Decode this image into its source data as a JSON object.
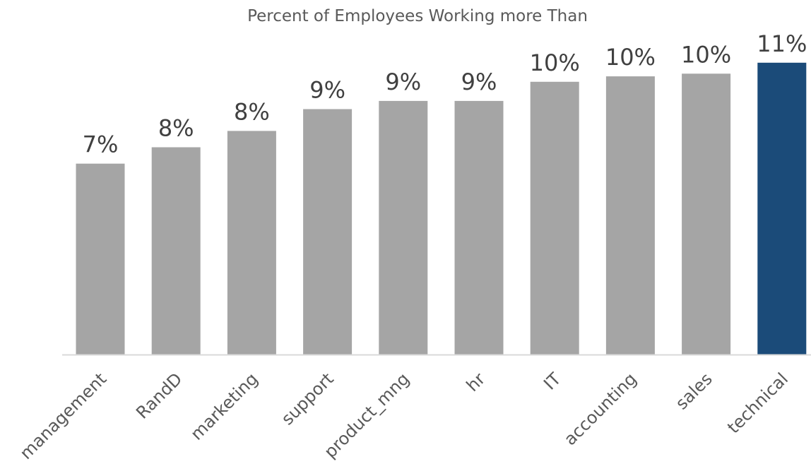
{
  "chart_data": {
    "type": "bar",
    "title": "Percent of Employees Working more Than",
    "xlabel": "",
    "ylabel": "",
    "categories": [
      "management",
      "RandD",
      "marketing",
      "support",
      "product_mng",
      "hr",
      "IT",
      "accounting",
      "sales",
      "technical"
    ],
    "values": [
      7.0,
      7.6,
      8.2,
      9.0,
      9.3,
      9.3,
      10.0,
      10.2,
      10.3,
      10.7
    ],
    "data_labels": [
      "7%",
      "8%",
      "8%",
      "9%",
      "9%",
      "9%",
      "10%",
      "10%",
      "10%",
      "11%"
    ],
    "ylim": [
      0,
      13
    ],
    "grid": false,
    "legend": "none",
    "colors": {
      "default_bar": "#a5a5a5",
      "highlight_bar": "#1b4b79",
      "axis_line": "#d9d9d9"
    },
    "highlight_category": "technical"
  }
}
